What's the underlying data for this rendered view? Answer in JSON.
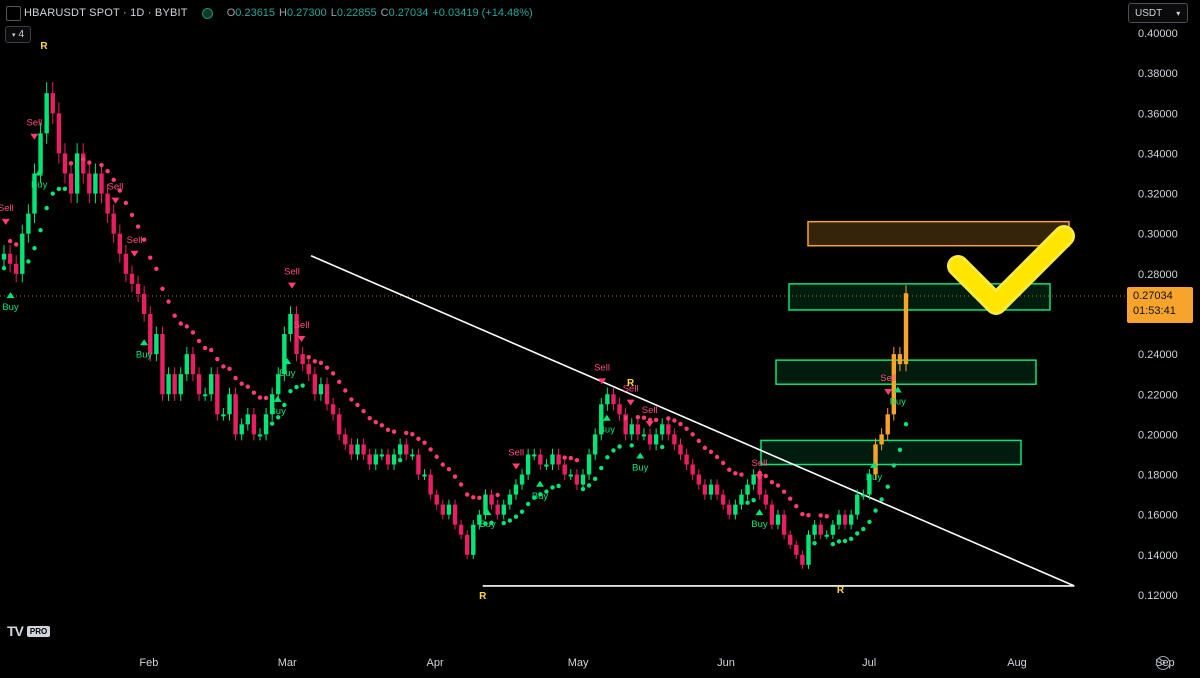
{
  "header": {
    "symbol": "HBARUSDT SPOT · 1D · BYBIT",
    "open_label": "O",
    "open": "0.23615",
    "high_label": "H",
    "high": "0.27300",
    "low_label": "L",
    "low": "0.22855",
    "close_label": "C",
    "close": "0.27034",
    "change": "+0.03419 (+14.48%)"
  },
  "toolbar": {
    "collapse_label": "4",
    "currency": "USDT"
  },
  "price_tag": {
    "price": "0.27034",
    "countdown": "01:53:41"
  },
  "brand": {
    "logo_text": "TV",
    "plan": "PRO"
  },
  "colors": {
    "up": "#00e676",
    "down": "#e91e63",
    "breakout": "#f7a42c",
    "trail_up": "#00e676",
    "trail_down": "#ff3d71",
    "zone_green": "#00e676",
    "zone_orange": "#f7a42c",
    "check": "#ffeb3b"
  },
  "chart_data": {
    "type": "candlestick",
    "y_axis_ticks": [
      "0.40000",
      "0.38000",
      "0.36000",
      "0.34000",
      "0.32000",
      "0.30000",
      "0.28000",
      "0.26000",
      "0.24000",
      "0.22000",
      "0.20000",
      "0.18000",
      "0.16000",
      "0.14000",
      "0.12000"
    ],
    "x_axis_ticks": [
      "Feb",
      "Mar",
      "Apr",
      "May",
      "Jun",
      "Jul",
      "Aug",
      "Sep"
    ],
    "ylim": [
      0.112,
      0.4
    ],
    "approx_closes_start_jan_1": [
      0.29,
      0.285,
      0.28,
      0.3,
      0.31,
      0.33,
      0.35,
      0.37,
      0.36,
      0.34,
      0.33,
      0.32,
      0.34,
      0.33,
      0.32,
      0.33,
      0.32,
      0.31,
      0.3,
      0.29,
      0.28,
      0.275,
      0.27,
      0.26,
      0.24,
      0.25,
      0.22,
      0.23,
      0.22,
      0.23,
      0.24,
      0.23,
      0.22,
      0.22,
      0.23,
      0.21,
      0.21,
      0.22,
      0.2,
      0.205,
      0.21,
      0.2,
      0.2,
      0.21,
      0.22,
      0.23,
      0.25,
      0.26,
      0.24,
      0.235,
      0.23,
      0.22,
      0.225,
      0.215,
      0.21,
      0.2,
      0.195,
      0.19,
      0.195,
      0.19,
      0.185,
      0.19,
      0.19,
      0.185,
      0.19,
      0.195,
      0.19,
      0.19,
      0.18,
      0.18,
      0.17,
      0.165,
      0.16,
      0.165,
      0.155,
      0.15,
      0.14,
      0.155,
      0.16,
      0.17,
      0.165,
      0.16,
      0.165,
      0.17,
      0.175,
      0.18,
      0.19,
      0.19,
      0.185,
      0.185,
      0.19,
      0.185,
      0.18,
      0.18,
      0.175,
      0.18,
      0.19,
      0.2,
      0.215,
      0.22,
      0.215,
      0.21,
      0.2,
      0.205,
      0.2,
      0.2,
      0.195,
      0.2,
      0.205,
      0.2,
      0.195,
      0.19,
      0.185,
      0.18,
      0.175,
      0.17,
      0.175,
      0.17,
      0.165,
      0.16,
      0.165,
      0.17,
      0.175,
      0.18,
      0.17,
      0.165,
      0.155,
      0.16,
      0.15,
      0.145,
      0.14,
      0.135,
      0.15,
      0.155,
      0.15,
      0.15,
      0.155,
      0.16,
      0.155,
      0.16,
      0.17,
      0.17,
      0.18,
      0.195,
      0.2,
      0.21,
      0.24,
      0.235,
      0.27034
    ],
    "signals": [
      {
        "label": "Sell",
        "date": "2024-01-02"
      },
      {
        "label": "Buy",
        "date": "2024-01-03"
      },
      {
        "label": "Sell",
        "date": "2024-01-08"
      },
      {
        "label": "Buy",
        "date": "2024-01-09"
      },
      {
        "label": "Sell",
        "date": "2024-01-25"
      },
      {
        "label": "Sell",
        "date": "2024-01-29"
      },
      {
        "label": "Buy",
        "date": "2024-01-31"
      },
      {
        "label": "Sell",
        "date": "2024-03-02"
      },
      {
        "label": "Sell",
        "date": "2024-03-04"
      },
      {
        "label": "Buy",
        "date": "2024-02-28"
      },
      {
        "label": "Buy",
        "date": "2024-03-01"
      },
      {
        "label": "Buy",
        "date": "2024-04-12"
      },
      {
        "label": "Sell",
        "date": "2024-04-18"
      },
      {
        "label": "Buy",
        "date": "2024-04-23"
      },
      {
        "label": "Sell",
        "date": "2024-05-06"
      },
      {
        "label": "Buy",
        "date": "2024-05-07"
      },
      {
        "label": "Sell",
        "date": "2024-05-12"
      },
      {
        "label": "Buy",
        "date": "2024-05-14"
      },
      {
        "label": "Sell",
        "date": "2024-05-16"
      },
      {
        "label": "Sell",
        "date": "2024-06-08"
      },
      {
        "label": "Buy",
        "date": "2024-06-08"
      },
      {
        "label": "Buy",
        "date": "2024-07-02"
      },
      {
        "label": "Sell",
        "date": "2024-07-05"
      },
      {
        "label": "Buy",
        "date": "2024-07-07"
      }
    ],
    "r_labels": [
      "R",
      "R",
      "R",
      "R"
    ],
    "zones": [
      {
        "color": "orange",
        "low": 0.294,
        "high": 0.306
      },
      {
        "color": "green",
        "low": 0.262,
        "high": 0.275
      },
      {
        "color": "green",
        "low": 0.225,
        "high": 0.237
      },
      {
        "color": "green",
        "low": 0.185,
        "high": 0.197
      }
    ],
    "triangle": {
      "upper": [
        [
          0.289,
          "2024-03-06"
        ],
        [
          0.1245,
          "2024-08-13"
        ]
      ],
      "lower": [
        [
          0.1245,
          "2024-04-11"
        ],
        [
          0.1245,
          "2024-08-13"
        ]
      ]
    }
  }
}
